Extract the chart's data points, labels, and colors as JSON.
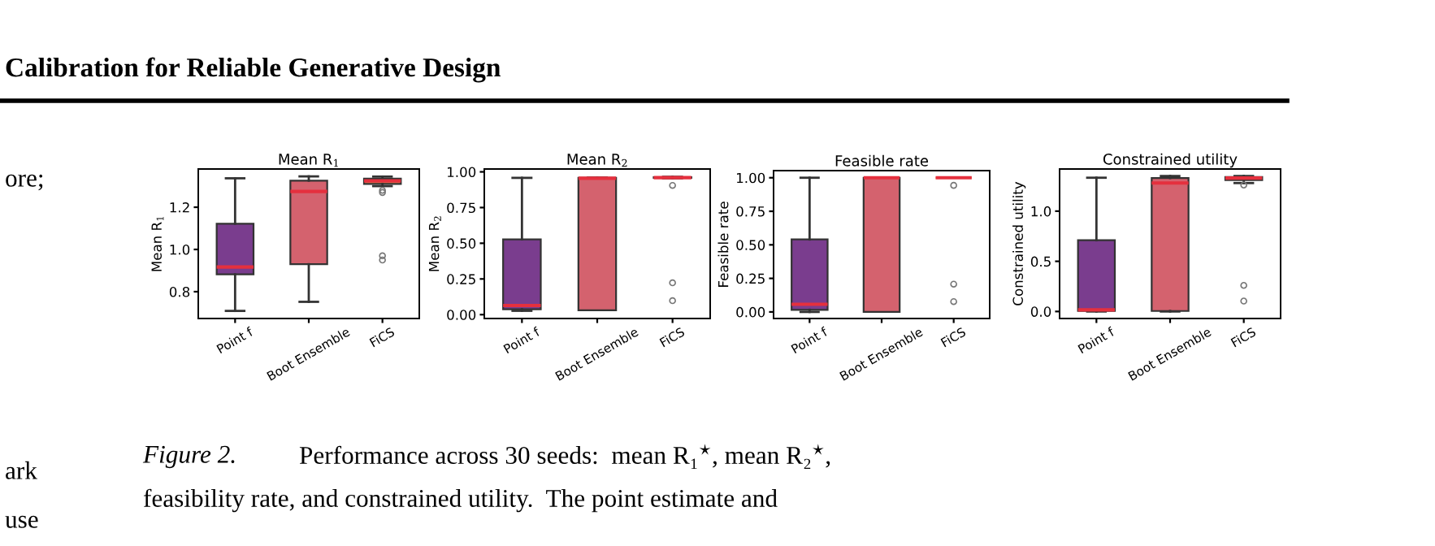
{
  "chart_data": [
    {
      "type": "box",
      "title": "Mean R$_{1}$",
      "ylabel": "Mean R$_{1}$",
      "categories": [
        "Point f",
        "Boot Ensemble",
        "FiCS"
      ],
      "colors": [
        "#7a3d8e",
        "#d4626e",
        "#f0a05a"
      ],
      "ylim": [
        0.673,
        1.381
      ],
      "yticks": [
        0.8,
        {
          "value": 1,
          "label": "1.0"
        },
        1.2
      ],
      "boxes": [
        {
          "low": 0.709,
          "q1": 0.882,
          "median": 0.917,
          "q3": 1.122,
          "high": 1.337
        },
        {
          "low": 0.752,
          "q1": 0.93,
          "median": 1.275,
          "q3": 1.326,
          "high": 1.346
        },
        {
          "low": 1.3,
          "q1": 1.31,
          "median": 1.325,
          "q3": 1.335,
          "high": 1.345,
          "outliers": [
            1.28,
            1.27,
            0.97,
            0.95
          ]
        }
      ],
      "annotations": [
        "Calibration for Reliable Generative Design",
        "ore;",
        "ark",
        "use",
        "Figure 2.",
        "Performance across 30 seeds:  mean R₁$^{⋆}$, mean R₂$^{⋆}$,",
        "feasibility rate, and constrained utility.  The point estimate and"
      ]
    },
    {
      "type": "box",
      "title": "Mean R$_{2}$",
      "ylabel": "Mean R$_{2}$",
      "categories": [
        "Point f",
        "Boot Ensemble",
        "FiCS"
      ],
      "colors": [
        "#7a3d8e",
        "#d4626e",
        "#f0a05a"
      ],
      "ylim": [
        -0.027,
        1.02
      ],
      "yticks": [
        {
          "value": 0,
          "label": "0.00"
        },
        {
          "value": 0.25,
          "label": "0.25"
        },
        {
          "value": 0.5,
          "label": "0.50"
        },
        {
          "value": 0.75,
          "label": "0.75"
        },
        {
          "value": 1,
          "label": "1.00"
        }
      ],
      "boxes": [
        {
          "low": 0.027,
          "q1": 0.038,
          "median": 0.064,
          "q3": 0.527,
          "high": 0.958
        },
        {
          "low": 0.03,
          "q1": 0.03,
          "median": 0.955,
          "q3": 0.958,
          "high": 0.96
        },
        {
          "low": 0.955,
          "q1": 0.958,
          "median": 0.96,
          "q3": 0.962,
          "high": 0.965,
          "outliers": [
            0.905,
            0.223,
            0.098
          ]
        }
      ]
    },
    {
      "type": "box",
      "title": "Feasible rate",
      "ylabel": "Feasible rate",
      "categories": [
        "Point f",
        "Boot Ensemble",
        "FiCS"
      ],
      "colors": [
        "#7a3d8e",
        "#d4626e",
        "#f0a05a"
      ],
      "ylim": [
        -0.049,
        1.053
      ],
      "yticks": [
        {
          "value": 0,
          "label": "0.00"
        },
        {
          "value": 0.25,
          "label": "0.25"
        },
        {
          "value": 0.5,
          "label": "0.50"
        },
        {
          "value": 0.75,
          "label": "0.75"
        },
        {
          "value": 1,
          "label": "1.00"
        }
      ],
      "boxes": [
        {
          "low": 0.0,
          "q1": 0.016,
          "median": 0.057,
          "q3": 0.54,
          "high": 1.0
        },
        {
          "low": 0.0,
          "q1": 0.0,
          "median": 1.0,
          "q3": 1.0,
          "high": 1.0
        },
        {
          "low": 1.0,
          "q1": 1.0,
          "median": 1.0,
          "q3": 1.0,
          "high": 1.0,
          "outliers": [
            0.943,
            0.207,
            0.077
          ]
        }
      ]
    },
    {
      "type": "box",
      "title": "Constrained utility",
      "ylabel": "Constrained utility",
      "categories": [
        "Point f",
        "Boot Ensemble",
        "FiCS"
      ],
      "colors": [
        "#7a3d8e",
        "#d4626e",
        "#f0a05a"
      ],
      "ylim": [
        -0.07,
        1.42
      ],
      "yticks": [
        {
          "value": 0,
          "label": "0.0"
        },
        0.5,
        {
          "value": 1,
          "label": "1.0"
        }
      ],
      "boxes": [
        {
          "low": 0.0,
          "q1": 0.005,
          "median": 0.016,
          "q3": 0.71,
          "high": 1.333
        },
        {
          "low": 0.0,
          "q1": 0.005,
          "median": 1.28,
          "q3": 1.33,
          "high": 1.35
        },
        {
          "low": 1.28,
          "q1": 1.31,
          "median": 1.33,
          "q3": 1.34,
          "high": 1.35,
          "outliers": [
            1.26,
            0.26,
            0.104
          ]
        }
      ]
    }
  ]
}
